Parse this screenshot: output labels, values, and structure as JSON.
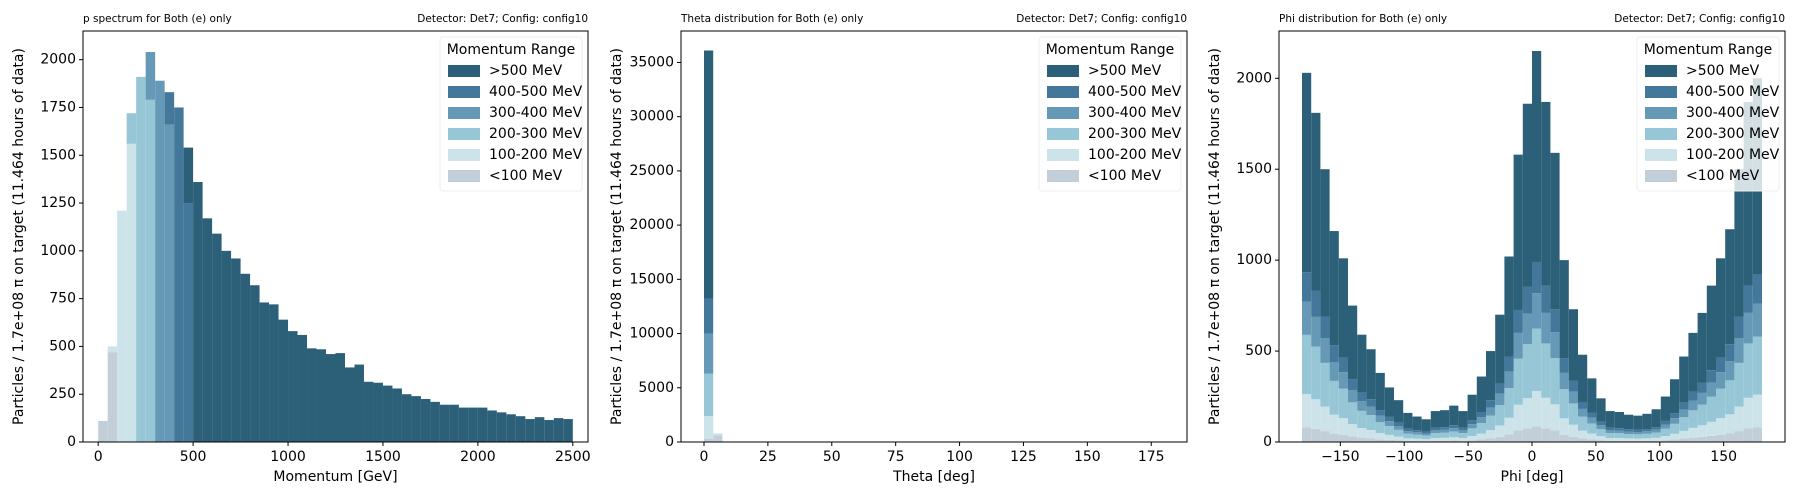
{
  "chart_data": [
    {
      "type": "histogram",
      "stacked": true,
      "title": "p spectrum for Both (e) only",
      "subtitle": "Detector: Det7; Config: config10",
      "xlabel": "Momentum [GeV]",
      "ylabel": "Particles / 1.7e+08 π on target (11.464 hours of data)",
      "legend_title": "Momentum Range",
      "legend": "upper right",
      "bins": [
        0,
        50,
        100,
        150,
        200,
        250,
        300,
        350,
        400,
        450,
        500,
        550,
        600,
        650,
        700,
        750,
        800,
        850,
        900,
        950,
        1000,
        1050,
        1100,
        1150,
        1200,
        1250,
        1300,
        1350,
        1400,
        1450,
        1500,
        1550,
        1600,
        1650,
        1700,
        1750,
        1800,
        1850,
        1900,
        1950,
        2000,
        2050,
        2100,
        2150,
        2200,
        2250,
        2300,
        2350,
        2400,
        2450,
        2500
      ],
      "series": [
        {
          "name": ">500 MeV",
          "color": "#2c5f78",
          "values": [
            0,
            0,
            0,
            0,
            0,
            0,
            0,
            0,
            0,
            290,
            1360,
            1170,
            1090,
            1000,
            960,
            880,
            820,
            730,
            720,
            640,
            580,
            560,
            490,
            485,
            460,
            465,
            390,
            405,
            315,
            310,
            295,
            280,
            250,
            240,
            225,
            210,
            195,
            195,
            180,
            180,
            180,
            165,
            155,
            145,
            135,
            120,
            130,
            115,
            125,
            120
          ]
        },
        {
          "name": "400-500 MeV",
          "color": "#44789a",
          "values": [
            0,
            0,
            0,
            0,
            0,
            0,
            0,
            170,
            1750,
            1250,
            0,
            0,
            0,
            0,
            0,
            0,
            0,
            0,
            0,
            0,
            0,
            0,
            0,
            0,
            0,
            0,
            0,
            0,
            0,
            0,
            0,
            0,
            0,
            0,
            0,
            0,
            0,
            0,
            0,
            0,
            0,
            0,
            0,
            0,
            0,
            0,
            0,
            0,
            0,
            0
          ]
        },
        {
          "name": "300-400 MeV",
          "color": "#6699b6",
          "values": [
            0,
            0,
            0,
            0,
            0,
            250,
            1890,
            1660,
            0,
            0,
            0,
            0,
            0,
            0,
            0,
            0,
            0,
            0,
            0,
            0,
            0,
            0,
            0,
            0,
            0,
            0,
            0,
            0,
            0,
            0,
            0,
            0,
            0,
            0,
            0,
            0,
            0,
            0,
            0,
            0,
            0,
            0,
            0,
            0,
            0,
            0,
            0,
            0,
            0,
            0
          ]
        },
        {
          "name": "200-300 MeV",
          "color": "#97c7d6",
          "values": [
            0,
            0,
            0,
            160,
            1910,
            1790,
            0,
            0,
            0,
            0,
            0,
            0,
            0,
            0,
            0,
            0,
            0,
            0,
            0,
            0,
            0,
            0,
            0,
            0,
            0,
            0,
            0,
            0,
            0,
            0,
            0,
            0,
            0,
            0,
            0,
            0,
            0,
            0,
            0,
            0,
            0,
            0,
            0,
            0,
            0,
            0,
            0,
            0,
            0,
            0
          ]
        },
        {
          "name": "100-200 MeV",
          "color": "#cce3ea",
          "values": [
            0,
            30,
            1210,
            1560,
            0,
            0,
            0,
            0,
            0,
            0,
            0,
            0,
            0,
            0,
            0,
            0,
            0,
            0,
            0,
            0,
            0,
            0,
            0,
            0,
            0,
            0,
            0,
            0,
            0,
            0,
            0,
            0,
            0,
            0,
            0,
            0,
            0,
            0,
            0,
            0,
            0,
            0,
            0,
            0,
            0,
            0,
            0,
            0,
            0,
            0
          ]
        },
        {
          "name": "<100 MeV",
          "color": "#c2cfd8",
          "values": [
            110,
            470,
            0,
            0,
            0,
            0,
            0,
            0,
            0,
            0,
            0,
            0,
            0,
            0,
            0,
            0,
            0,
            0,
            0,
            0,
            0,
            0,
            0,
            0,
            0,
            0,
            0,
            0,
            0,
            0,
            0,
            0,
            0,
            0,
            0,
            0,
            0,
            0,
            0,
            0,
            0,
            0,
            0,
            0,
            0,
            0,
            0,
            0,
            0,
            0
          ]
        }
      ],
      "xlim": [
        -80,
        2580
      ],
      "ylim": [
        0,
        2150
      ],
      "xticks": [
        0,
        500,
        1000,
        1500,
        2000,
        2500
      ],
      "yticks": [
        0,
        250,
        500,
        750,
        1000,
        1250,
        1500,
        1750,
        2000
      ]
    },
    {
      "type": "histogram",
      "stacked": true,
      "title": "Theta distribution for Both (e) only",
      "subtitle": "Detector: Det7; Config: config10",
      "xlabel": "Theta [deg]",
      "ylabel": "Particles / 1.7e+08 π on target (11.464 hours of data)",
      "legend_title": "Momentum Range",
      "legend": "upper right",
      "bins": [
        0,
        3.6,
        7.2
      ],
      "series": [
        {
          "name": ">500 MeV",
          "color": "#2c5f78",
          "values": [
            22900,
            0
          ]
        },
        {
          "name": "400-500 MeV",
          "color": "#44789a",
          "values": [
            3200,
            0
          ]
        },
        {
          "name": "300-400 MeV",
          "color": "#6699b6",
          "values": [
            3700,
            0
          ]
        },
        {
          "name": "200-300 MeV",
          "color": "#97c7d6",
          "values": [
            3900,
            0
          ]
        },
        {
          "name": "100-200 MeV",
          "color": "#cce3ea",
          "values": [
            2100,
            200
          ]
        },
        {
          "name": "<100 MeV",
          "color": "#c2cfd8",
          "values": [
            300,
            600
          ]
        }
      ],
      "xlim": [
        -9,
        189
      ],
      "ylim": [
        0,
        37900
      ],
      "xticks": [
        0,
        25,
        50,
        75,
        100,
        125,
        150,
        175
      ],
      "yticks": [
        0,
        5000,
        10000,
        15000,
        20000,
        25000,
        30000,
        35000
      ]
    },
    {
      "type": "histogram",
      "stacked": true,
      "title": "Phi distribution for Both (e) only",
      "subtitle": "Detector: Det7; Config: config10",
      "xlabel": "Phi [deg]",
      "ylabel": "Particles / 1.7e+08 π on target (11.464 hours of data)",
      "legend_title": "Momentum Range",
      "legend": "upper right",
      "bins": [
        -180,
        -172.8,
        -165.6,
        -158.4,
        -151.2,
        -144,
        -136.8,
        -129.6,
        -122.4,
        -115.2,
        -108,
        -100.8,
        -93.6,
        -86.4,
        -79.2,
        -72,
        -64.8,
        -57.6,
        -50.4,
        -43.2,
        -36,
        -28.8,
        -21.6,
        -14.4,
        -7.2,
        0,
        7.2,
        14.4,
        21.6,
        28.8,
        36,
        43.2,
        50.4,
        57.6,
        64.8,
        72,
        79.2,
        86.4,
        93.6,
        100.8,
        108,
        115.2,
        122.4,
        129.6,
        136.8,
        144,
        151.2,
        158.4,
        165.6,
        172.8,
        180
      ],
      "series": [
        {
          "name": ">500 MeV",
          "color": "#2c5f78",
          "values": [
            1096,
            977,
            810,
            627,
            545,
            404,
            319,
            275,
            206,
            162,
            124,
            87,
            75,
            68,
            92,
            94,
            108,
            92,
            141,
            195,
            270,
            378,
            550,
            854,
            1005,
            1160,
            1010,
            859,
            540,
            394,
            260,
            188,
            129,
            92,
            89,
            80,
            78,
            84,
            98,
            134,
            186,
            254,
            324,
            383,
            465,
            545,
            632,
            810,
            1010,
            1080
          ]
        },
        {
          "name": "400-500 MeV",
          "color": "#44789a",
          "values": [
            162,
            145,
            120,
            93,
            81,
            60,
            47,
            41,
            30,
            24,
            18,
            13,
            11,
            10,
            14,
            14,
            16,
            14,
            21,
            29,
            40,
            56,
            82,
            126,
            149,
            172,
            150,
            127,
            80,
            58,
            38,
            28,
            19,
            14,
            13,
            12,
            12,
            12,
            14,
            20,
            28,
            38,
            48,
            57,
            69,
            81,
            94,
            120,
            150,
            160
          ]
        },
        {
          "name": "300-400 MeV",
          "color": "#6699b6",
          "values": [
            183,
            163,
            135,
            104,
            91,
            68,
            53,
            46,
            34,
            27,
            21,
            14,
            13,
            11,
            15,
            16,
            18,
            15,
            23,
            32,
            45,
            63,
            92,
            142,
            167,
            194,
            168,
            143,
            90,
            66,
            43,
            32,
            22,
            15,
            15,
            14,
            13,
            14,
            16,
            23,
            31,
            42,
            54,
            64,
            77,
            91,
            105,
            135,
            168,
            180
          ]
        },
        {
          "name": "200-300 MeV",
          "color": "#97c7d6",
          "values": [
            325,
            290,
            240,
            186,
            162,
            120,
            94,
            82,
            61,
            48,
            37,
            26,
            22,
            20,
            27,
            28,
            32,
            27,
            42,
            58,
            80,
            112,
            163,
            253,
            298,
            344,
            299,
            254,
            160,
            117,
            77,
            56,
            38,
            27,
            26,
            24,
            23,
            25,
            29,
            40,
            55,
            75,
            96,
            114,
            138,
            162,
            187,
            240,
            299,
            320
          ]
        },
        {
          "name": "100-200 MeV",
          "color": "#cce3ea",
          "values": [
            183,
            163,
            135,
            104,
            91,
            68,
            53,
            46,
            34,
            27,
            21,
            14,
            13,
            11,
            15,
            16,
            18,
            15,
            23,
            32,
            45,
            63,
            92,
            142,
            167,
            194,
            168,
            143,
            90,
            66,
            43,
            32,
            22,
            15,
            15,
            14,
            13,
            14,
            16,
            23,
            31,
            42,
            54,
            64,
            77,
            91,
            105,
            135,
            168,
            180
          ]
        },
        {
          "name": "<100 MeV",
          "color": "#c2cfd8",
          "values": [
            81,
            72,
            60,
            46,
            40,
            30,
            24,
            20,
            15,
            12,
            9,
            6,
            6,
            5,
            7,
            7,
            8,
            7,
            10,
            14,
            20,
            28,
            41,
            63,
            74,
            86,
            75,
            64,
            40,
            29,
            19,
            14,
            10,
            7,
            7,
            6,
            6,
            6,
            7,
            10,
            14,
            19,
            24,
            28,
            34,
            40,
            47,
            60,
            75,
            80
          ]
        }
      ],
      "xlim": [
        -198,
        198
      ],
      "ylim": [
        0,
        2260
      ],
      "xticks": [
        {
          "value": -150,
          "label": "−150"
        },
        {
          "value": -100,
          "label": "−100"
        },
        {
          "value": -50,
          "label": "−50"
        },
        0,
        50,
        100,
        150
      ],
      "yticks": [
        0,
        500,
        1000,
        1500,
        2000
      ]
    }
  ]
}
